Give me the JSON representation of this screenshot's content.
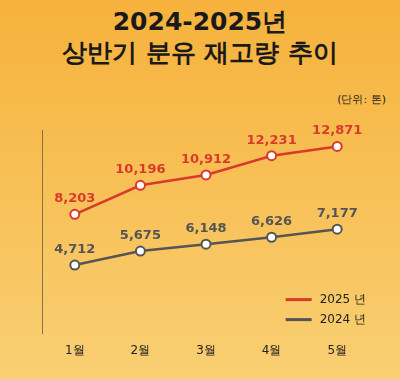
{
  "chart_data": {
    "type": "line",
    "title": "2024-2025년\n상반기 분유 재고량 추이",
    "ylabel": "(단위: 톤)",
    "categories": [
      "1월",
      "2월",
      "3월",
      "4월",
      "5월"
    ],
    "series": [
      {
        "name": "2025 년",
        "color": "#d93a2b",
        "marker": "circle",
        "line_style": "solid",
        "values": [
          8203,
          10196,
          10912,
          12231,
          12871
        ],
        "value_labels": [
          "8,203",
          "10,196",
          "10,912",
          "12,231",
          "12,871"
        ]
      },
      {
        "name": "2024 년",
        "color": "#555555",
        "marker": "circle",
        "line_style": "solid",
        "values": [
          4712,
          5675,
          6148,
          6626,
          7177
        ],
        "value_labels": [
          "4,712",
          "5,675",
          "6,148",
          "6,626",
          "7,177"
        ]
      }
    ],
    "ylim": [
      0,
      14000
    ],
    "grid": false,
    "legend": "lower right",
    "data_labels": true,
    "tick_labels": "x"
  }
}
